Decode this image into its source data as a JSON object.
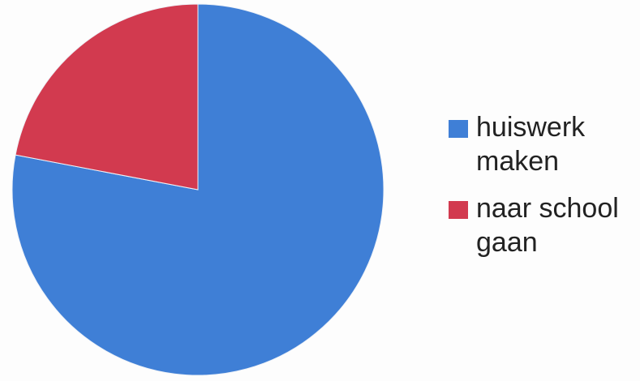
{
  "chart_data": {
    "type": "pie",
    "title": "",
    "categories": [
      "huiswerk\nmaken",
      "naar school\ngaan"
    ],
    "values": [
      78,
      22
    ],
    "colors": [
      "#3f7fd6",
      "#d23a4f"
    ],
    "start_angle_deg": 0,
    "direction": "clockwise",
    "legend_position": "right"
  }
}
